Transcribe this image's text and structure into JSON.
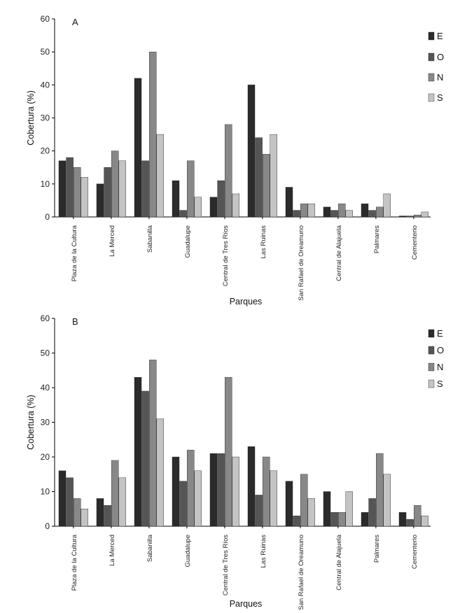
{
  "colors": {
    "E": "#2b2b2b",
    "O": "#555555",
    "N": "#888888",
    "S": "#c4c4c4"
  },
  "chart_data": [
    {
      "type": "bar",
      "panel_label": "A",
      "categories": [
        "Plaza de la Cultura",
        "La Merced",
        "Sabanilla",
        "Guadalupe",
        "Central de Tres Ríos",
        "Las Ruinas",
        "San Rafael de Oreamuno",
        "Central de Alajuela",
        "Palmares",
        "Cementerio"
      ],
      "series": [
        {
          "name": "E",
          "values": [
            17,
            10,
            42,
            11,
            6,
            40,
            9,
            3,
            4,
            0.3
          ]
        },
        {
          "name": "O",
          "values": [
            18,
            15,
            17,
            2,
            11,
            24,
            2,
            2,
            2,
            0.3
          ]
        },
        {
          "name": "N",
          "values": [
            15,
            20,
            50,
            17,
            28,
            19,
            4,
            4,
            3,
            0.6
          ]
        },
        {
          "name": "S",
          "values": [
            12,
            17,
            25,
            6,
            7,
            25,
            4,
            2,
            7,
            1.5
          ]
        }
      ],
      "xlabel": "Parques",
      "ylabel": "Cobertura (%)",
      "ylim": [
        0,
        60
      ],
      "yticks": [
        0,
        10,
        20,
        30,
        40,
        50,
        60
      ],
      "legend": "top-right",
      "grid": false
    },
    {
      "type": "bar",
      "panel_label": "B",
      "categories": [
        "Plaza de la Cultura",
        "La Merced",
        "Sabanilla",
        "Guadalupe",
        "Central de Tres Ríos",
        "Las Ruinas",
        "San Rafael de Oreamuno",
        "Central de Alajuela",
        "Palmares",
        "Cementerio"
      ],
      "series": [
        {
          "name": "E",
          "values": [
            16,
            8,
            43,
            20,
            21,
            23,
            13,
            10,
            4,
            4
          ]
        },
        {
          "name": "O",
          "values": [
            14,
            6,
            39,
            13,
            21,
            9,
            3,
            4,
            8,
            2
          ]
        },
        {
          "name": "N",
          "values": [
            8,
            19,
            48,
            22,
            43,
            20,
            15,
            4,
            21,
            6
          ]
        },
        {
          "name": "S",
          "values": [
            5,
            14,
            31,
            16,
            20,
            16,
            8,
            10,
            15,
            3
          ]
        }
      ],
      "xlabel": "Parques",
      "ylabel": "Cobertura (%)",
      "ylim": [
        0,
        60
      ],
      "yticks": [
        0,
        10,
        20,
        30,
        40,
        50,
        60
      ],
      "legend": "top-right",
      "grid": false
    }
  ]
}
